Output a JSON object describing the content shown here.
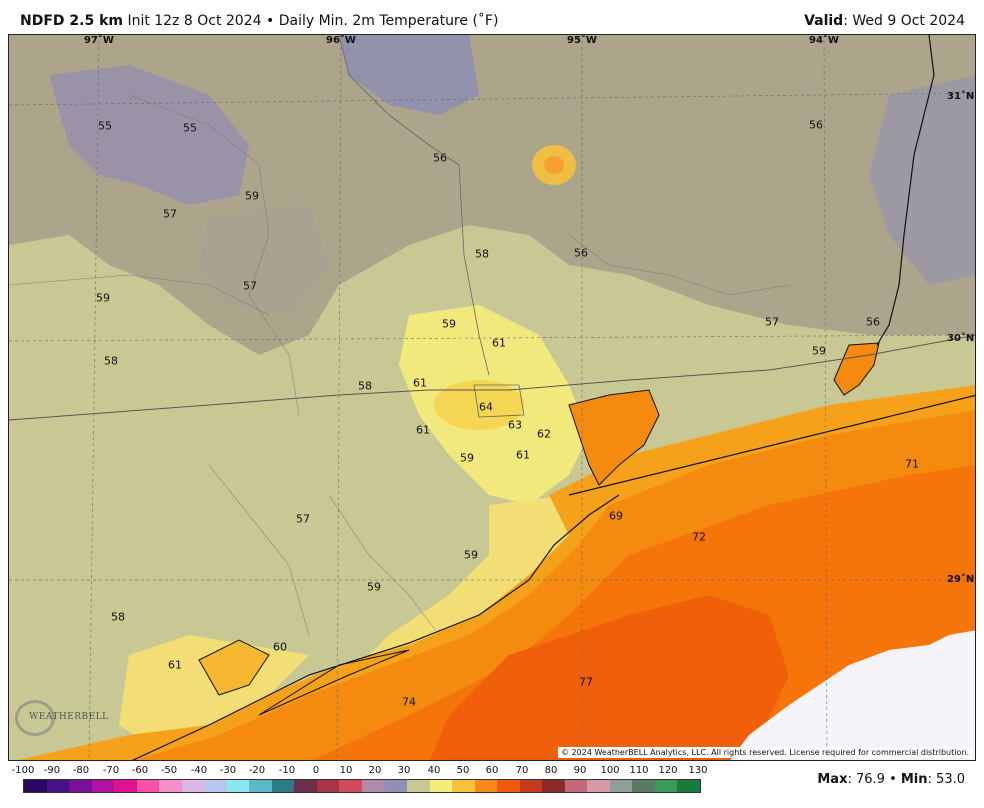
{
  "header": {
    "model": "NDFD 2.5 km",
    "init": "Init 12z 8 Oct 2024",
    "bullet": "•",
    "product": "Daily Min. 2m Temperature (˚F)",
    "valid_label": "Valid",
    "valid_value": ": Wed 9 Oct 2024"
  },
  "map": {
    "longitude_labels": [
      "97˚W",
      "96˚W",
      "95˚W",
      "94˚W"
    ],
    "latitude_labels": [
      "31˚N",
      "30˚N",
      "29˚N"
    ],
    "temperature_values": [
      "55",
      "55",
      "56",
      "56",
      "59",
      "57",
      "57",
      "59",
      "58",
      "56",
      "58",
      "59",
      "61",
      "57",
      "56",
      "59",
      "61",
      "58",
      "64",
      "63",
      "62",
      "61",
      "61",
      "59",
      "71",
      "69",
      "57",
      "72",
      "59",
      "59",
      "58",
      "60",
      "61",
      "77",
      "74"
    ],
    "copyright": "© 2024 WeatherBELL Analytics, LLC. All rights reserved. License required for commercial distribution.",
    "logo_text": "WEATHERBELL"
  },
  "colorbar": {
    "ticks": [
      "-100",
      "-90",
      "-80",
      "-70",
      "-60",
      "-50",
      "-40",
      "-30",
      "-20",
      "-10",
      "0",
      "10",
      "20",
      "30",
      "40",
      "50",
      "60",
      "70",
      "80",
      "90",
      "100",
      "110",
      "120",
      "130"
    ],
    "colors": [
      "#2a0a5e",
      "#4b0f8a",
      "#7a0f9c",
      "#b0139f",
      "#e0138f",
      "#f552a8",
      "#f58fc8",
      "#d9b6e3",
      "#b8c7ef",
      "#8ee6f2",
      "#5cb9c7",
      "#2f7a86",
      "#6b2f4a",
      "#a8344a",
      "#d24a5c",
      "#b08aa8",
      "#8f8fb8",
      "#c8c894",
      "#f6ec7a",
      "#f5c23a",
      "#f58a1a",
      "#f05a0a",
      "#c43c20",
      "#8a2a2a",
      "#c0697a",
      "#d59aa8",
      "#8fa09a",
      "#5a7a64",
      "#3a9a5a",
      "#1a7a3a"
    ]
  },
  "stats": {
    "max_label": "Max",
    "max_value": ": 76.9 • ",
    "min_label": "Min",
    "min_value": ": 53.0"
  }
}
